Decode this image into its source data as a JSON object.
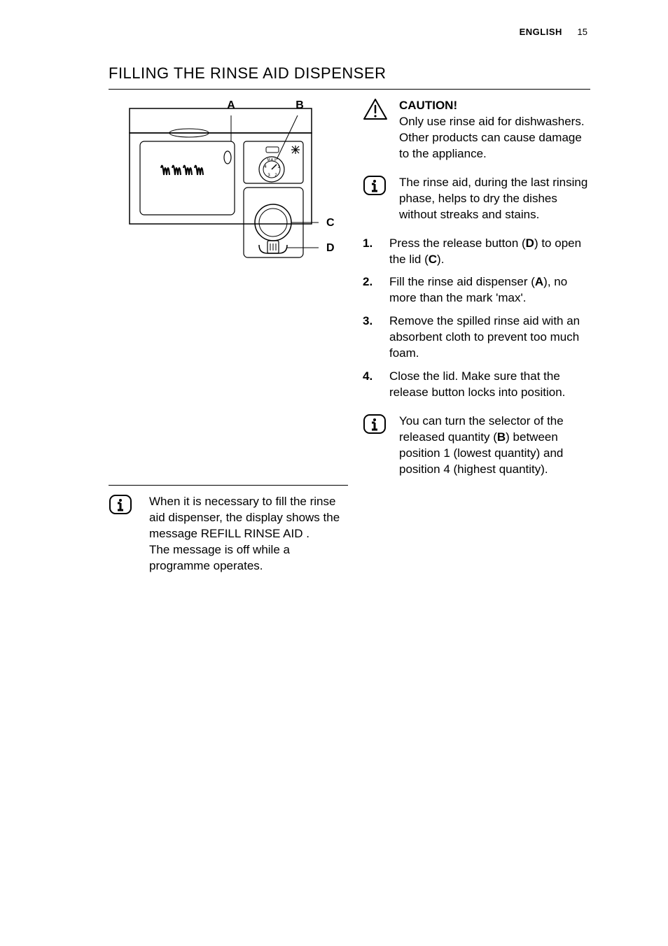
{
  "header": {
    "language": "ENGLISH",
    "page_number": "15"
  },
  "section_title": "FILLING THE RINSE AID DISPENSER",
  "diagram": {
    "labels": {
      "A": "A",
      "B": "B",
      "C": "C",
      "D": "D"
    },
    "dial_text": "MAX",
    "dial_numbers": [
      "1",
      "2",
      "3",
      "4"
    ],
    "stroke_color": "#000000",
    "background": "#ffffff"
  },
  "caution": {
    "heading": "CAUTION!",
    "body": "Only use rinse aid for dishwashers. Other products can cause damage to the appliance."
  },
  "info1": {
    "body": "The rinse aid, during the last rinsing phase, helps to dry the dishes without streaks and stains."
  },
  "steps": [
    {
      "num": "1.",
      "parts": [
        "Press the release button (",
        "D",
        ") to open the lid (",
        "C",
        ")."
      ]
    },
    {
      "num": "2.",
      "parts": [
        "Fill the rinse aid dispenser (",
        "A",
        "), no more than the mark 'max'."
      ]
    },
    {
      "num": "3.",
      "parts": [
        "Remove the spilled rinse aid with an absorbent cloth to prevent too much foam."
      ]
    },
    {
      "num": "4.",
      "parts": [
        "Close the lid. Make sure that the release button locks into position."
      ]
    }
  ],
  "info2": {
    "parts": [
      "You can turn the selector of the released quantity (",
      "B",
      ") between position 1 (lowest quantity) and position 4 (highest quantity)."
    ]
  },
  "info3": {
    "body": "When it is necessary to fill the rinse aid dispenser, the display shows the message REFILL RINSE AID .\nThe message is off while a programme operates."
  },
  "colors": {
    "text": "#000000",
    "background": "#ffffff",
    "rule": "#000000"
  },
  "typography": {
    "body_fontsize": 17,
    "title_fontsize": 22,
    "header_fontsize": 13
  }
}
